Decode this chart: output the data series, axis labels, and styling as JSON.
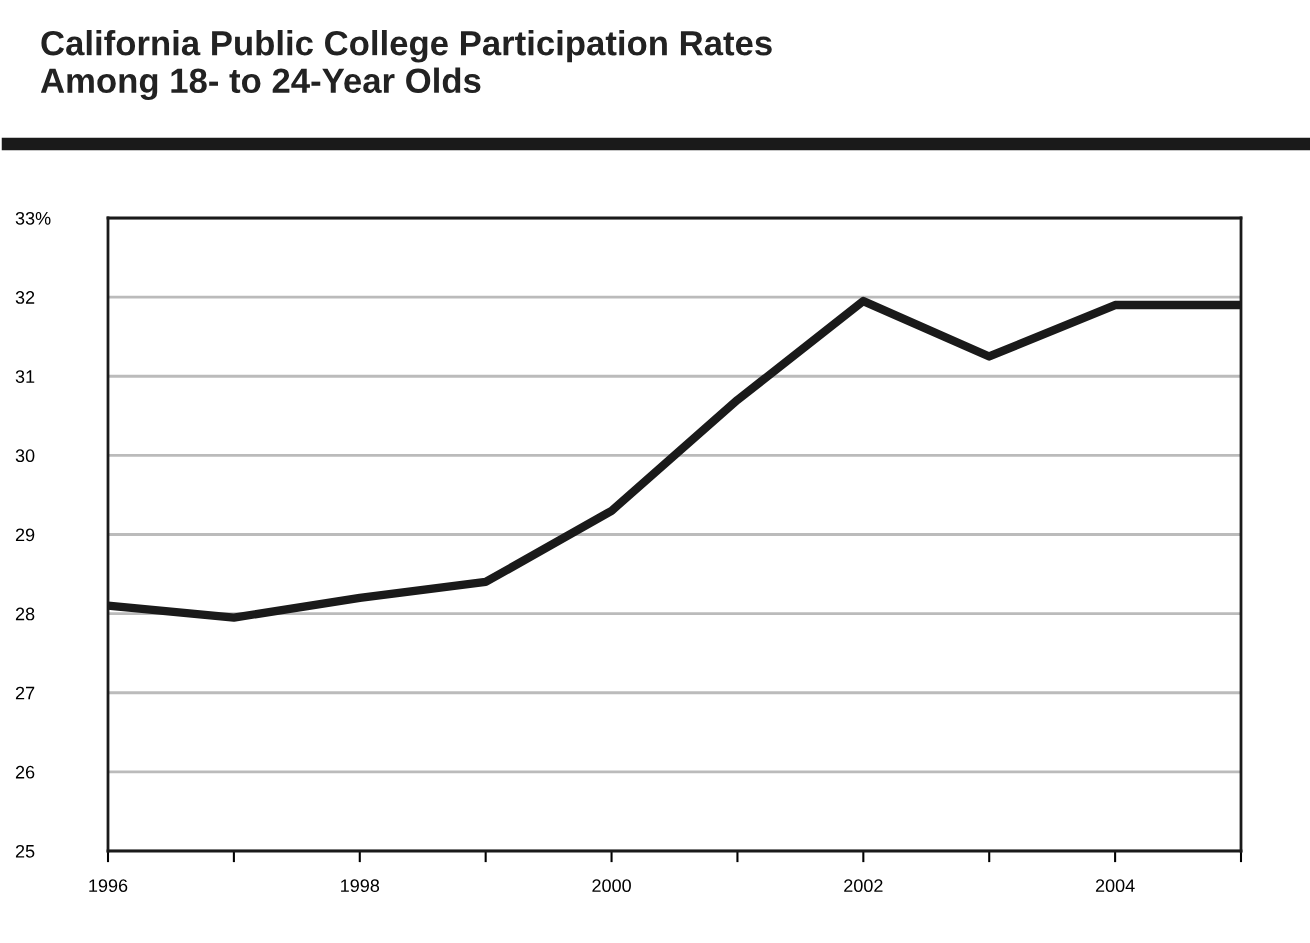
{
  "chart_data": {
    "type": "line",
    "title": "California Public College Participation Rates\nAmong 18- to 24-Year Olds",
    "x": [
      1996,
      1997,
      1998,
      1999,
      2000,
      2001,
      2002,
      2003,
      2004,
      2005
    ],
    "series": [
      {
        "color": "#1a1a1a",
        "values": [
          28.1,
          27.95,
          28.2,
          28.4,
          29.3,
          30.7,
          31.95,
          31.25,
          31.9,
          31.9
        ]
      }
    ],
    "xlim": [
      1996,
      2005
    ],
    "xticks": [
      1996,
      {
        "value": 1997,
        "label": null
      },
      1998,
      {
        "value": 1999,
        "label": null
      },
      2000,
      {
        "value": 2001,
        "label": null
      },
      2002,
      {
        "value": 2003,
        "label": null
      },
      2004,
      {
        "value": 2005,
        "label": null
      }
    ],
    "ylim": [
      25,
      33
    ],
    "yticks": [
      25,
      26,
      27,
      28,
      29,
      30,
      31,
      32,
      {
        "value": 33,
        "label": "33%"
      }
    ],
    "grid": "y",
    "legend": false,
    "marker": "none",
    "line_style": "solid"
  }
}
